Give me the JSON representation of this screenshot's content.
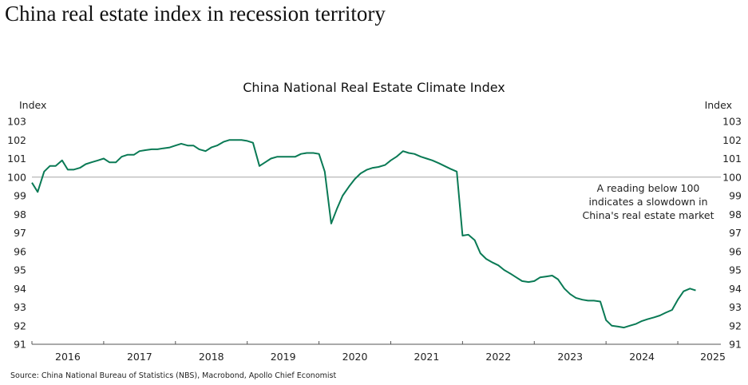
{
  "page_title": "China real estate index in recession territory",
  "source": "Source: China National Bureau of Statistics (NBS), Macrobond, Apollo Chief Economist",
  "chart_data": {
    "type": "line",
    "title": "China National Real Estate Climate Index",
    "ylabel_left": "Index",
    "ylabel_right": "Index",
    "xlabel": "",
    "ylim": [
      91,
      103
    ],
    "xlim": [
      2016.0,
      2025.6
    ],
    "y_ticks": [
      "91",
      "92",
      "93",
      "94",
      "95",
      "96",
      "97",
      "98",
      "99",
      "100",
      "101",
      "102",
      "103"
    ],
    "x_ticks": [
      "2016",
      "2017",
      "2018",
      "2019",
      "2020",
      "2021",
      "2022",
      "2023",
      "2024",
      "2025"
    ],
    "reference_line": {
      "value": 100,
      "color": "#a6a6a6"
    },
    "annotation": "A reading below 100 indicates a slowdown in China's real estate market",
    "grid": false,
    "legend": "none",
    "series": [
      {
        "name": "China National Real Estate Climate Index",
        "color": "#0a7a55",
        "x": [
          2016.0,
          2016.08,
          2016.17,
          2016.25,
          2016.33,
          2016.42,
          2016.5,
          2016.58,
          2016.67,
          2016.75,
          2016.83,
          2016.92,
          2017.0,
          2017.08,
          2017.17,
          2017.25,
          2017.33,
          2017.42,
          2017.5,
          2017.58,
          2017.67,
          2017.75,
          2017.83,
          2017.92,
          2018.0,
          2018.08,
          2018.17,
          2018.25,
          2018.33,
          2018.42,
          2018.5,
          2018.58,
          2018.67,
          2018.75,
          2018.83,
          2018.92,
          2019.0,
          2019.08,
          2019.17,
          2019.25,
          2019.33,
          2019.42,
          2019.5,
          2019.58,
          2019.67,
          2019.75,
          2019.83,
          2019.92,
          2020.0,
          2020.08,
          2020.17,
          2020.25,
          2020.33,
          2020.42,
          2020.5,
          2020.58,
          2020.67,
          2020.75,
          2020.83,
          2020.92,
          2021.0,
          2021.08,
          2021.17,
          2021.25,
          2021.33,
          2021.42,
          2021.5,
          2021.58,
          2021.67,
          2021.75,
          2021.83,
          2021.92,
          2022.0,
          2022.08,
          2022.17,
          2022.25,
          2022.33,
          2022.42,
          2022.5,
          2022.58,
          2022.67,
          2022.75,
          2022.83,
          2022.92,
          2023.0,
          2023.08,
          2023.17,
          2023.25,
          2023.33,
          2023.42,
          2023.5,
          2023.58,
          2023.67,
          2023.75,
          2023.83,
          2023.92,
          2024.0,
          2024.08,
          2024.17,
          2024.25,
          2024.33,
          2024.42,
          2024.5,
          2024.58,
          2024.67,
          2024.75,
          2024.83,
          2024.92,
          2025.0,
          2025.08,
          2025.17,
          2025.25
        ],
        "values": [
          99.7,
          99.2,
          100.3,
          100.6,
          100.6,
          100.9,
          100.4,
          100.4,
          100.5,
          100.7,
          100.8,
          100.9,
          101.0,
          100.8,
          100.8,
          101.1,
          101.2,
          101.2,
          101.4,
          101.45,
          101.5,
          101.5,
          101.55,
          101.6,
          101.7,
          101.8,
          101.7,
          101.7,
          101.5,
          101.4,
          101.6,
          101.7,
          101.9,
          102.0,
          102.0,
          102.0,
          101.95,
          101.85,
          100.6,
          100.8,
          101.0,
          101.1,
          101.1,
          101.1,
          101.1,
          101.25,
          101.3,
          101.3,
          101.25,
          100.3,
          97.5,
          98.3,
          99.0,
          99.5,
          99.9,
          100.2,
          100.4,
          100.5,
          100.55,
          100.65,
          100.9,
          101.1,
          101.4,
          101.3,
          101.25,
          101.1,
          101.0,
          100.9,
          100.75,
          100.6,
          100.45,
          100.3,
          96.85,
          96.9,
          96.6,
          95.9,
          95.6,
          95.4,
          95.25,
          95.0,
          94.8,
          94.6,
          94.4,
          94.35,
          94.4,
          94.6,
          94.65,
          94.7,
          94.5,
          94.0,
          93.7,
          93.5,
          93.4,
          93.35,
          93.35,
          93.3,
          92.3,
          92.0,
          91.95,
          91.9,
          92.0,
          92.1,
          92.25,
          92.35,
          92.45,
          92.55,
          92.7,
          92.85,
          93.4,
          93.85,
          94.0,
          93.9
        ]
      }
    ]
  }
}
